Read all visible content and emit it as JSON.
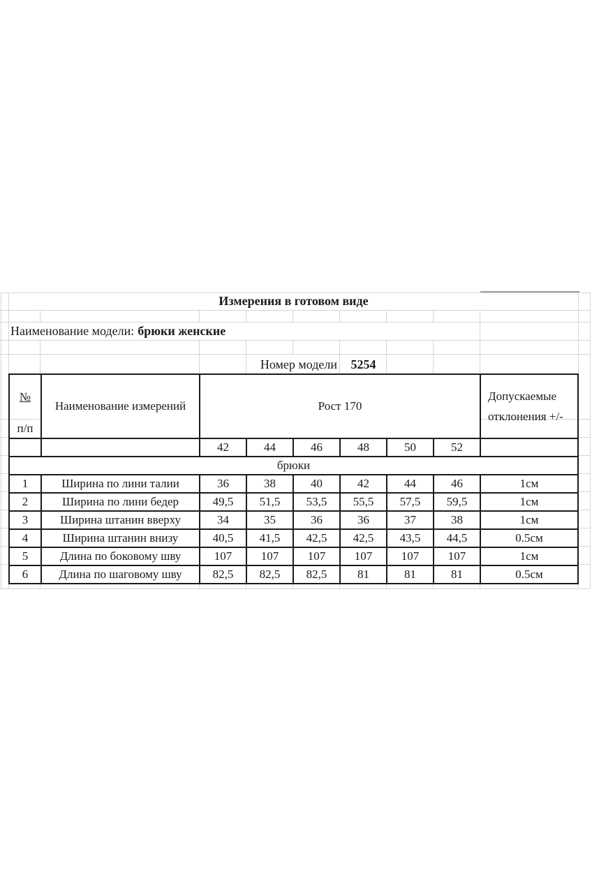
{
  "title": "Измерения в готовом виде",
  "model_line": {
    "label": "Наименование модели:",
    "value": "брюки женские"
  },
  "model_number": {
    "label": "Номер модели",
    "value": "5254"
  },
  "table": {
    "header": {
      "no_top": "№",
      "no_bottom": "п/п",
      "name_col": "Наименование измерений",
      "height_col": "Рост 170",
      "tolerance_line1": "Допускаемые",
      "tolerance_line2": "отклонения +/-"
    },
    "sizes": [
      "42",
      "44",
      "46",
      "48",
      "50",
      "52"
    ],
    "section_label": "брюки",
    "rows": [
      {
        "n": "1",
        "name": "Ширина по лини талии",
        "values": [
          "36",
          "38",
          "40",
          "42",
          "44",
          "46"
        ],
        "tolerance": "1см"
      },
      {
        "n": "2",
        "name": "Ширина по лини бедер",
        "values": [
          "49,5",
          "51,5",
          "53,5",
          "55,5",
          "57,5",
          "59,5"
        ],
        "tolerance": "1см"
      },
      {
        "n": "3",
        "name": "Ширина штанин вверху",
        "values": [
          "34",
          "35",
          "36",
          "36",
          "37",
          "38"
        ],
        "tolerance": "1см"
      },
      {
        "n": "4",
        "name": "Ширина штанин внизу",
        "values": [
          "40,5",
          "41,5",
          "42,5",
          "42,5",
          "43,5",
          "44,5"
        ],
        "tolerance": "0.5см"
      },
      {
        "n": "5",
        "name": "Длина по боковому шву",
        "values": [
          "107",
          "107",
          "107",
          "107",
          "107",
          "107"
        ],
        "tolerance": "1см"
      },
      {
        "n": "6",
        "name": "Длина по шаговому шву",
        "values": [
          "82,5",
          "82,5",
          "82,5",
          "81",
          "81",
          "81"
        ],
        "tolerance": "0.5см"
      }
    ],
    "colors": {
      "grid": "#d5d5d5",
      "border": "#1b1b1b",
      "accent_segment": "#93a8a0"
    }
  }
}
